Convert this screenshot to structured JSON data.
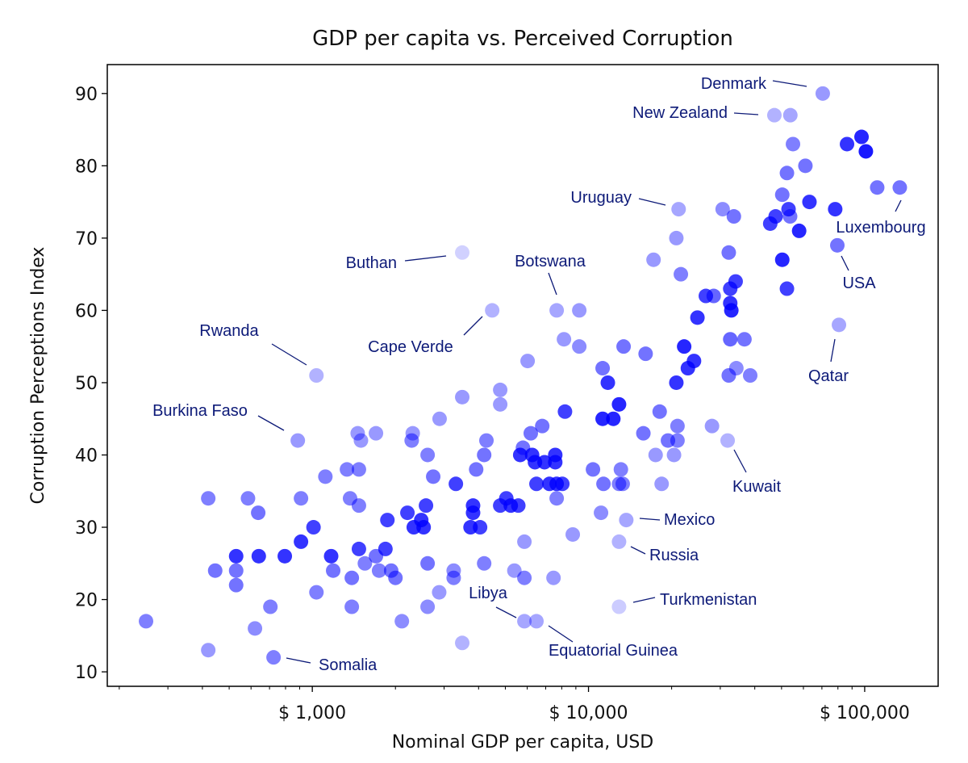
{
  "chart_data": {
    "type": "scatter",
    "title": "GDP per capita vs. Perceived Corruption",
    "xlabel": "Nominal GDP per capita, USD",
    "ylabel": "Corruption Perceptions Index",
    "xscale": "log",
    "xlim": [
      181,
      184500
    ],
    "ylim": [
      8,
      94
    ],
    "x_ticks": [
      1000,
      10000,
      100000
    ],
    "x_tick_labels": [
      "$ 1,000",
      "$ 10,000",
      "$ 100,000"
    ],
    "y_ticks": [
      10,
      20,
      30,
      40,
      50,
      60,
      70,
      80,
      90
    ],
    "y_tick_labels": [
      "10",
      "20",
      "30",
      "40",
      "50",
      "60",
      "70",
      "80",
      "90"
    ],
    "grid": false,
    "marker_color": "#0000ff",
    "annotation_color": "#0d1a78",
    "points": [
      [
        250,
        17,
        0.5
      ],
      [
        420,
        34,
        0.5
      ],
      [
        420,
        13,
        0.4
      ],
      [
        445,
        24,
        0.55
      ],
      [
        530,
        26,
        0.8
      ],
      [
        530,
        24,
        0.55
      ],
      [
        530,
        22,
        0.55
      ],
      [
        585,
        34,
        0.5
      ],
      [
        637,
        32,
        0.55
      ],
      [
        620,
        16,
        0.45
      ],
      [
        640,
        26,
        0.8
      ],
      [
        705,
        19,
        0.5
      ],
      [
        724,
        12,
        0.5
      ],
      [
        795,
        26,
        0.8
      ],
      [
        910,
        34,
        0.5
      ],
      [
        910,
        28,
        0.8
      ],
      [
        1010,
        30,
        0.75
      ],
      [
        1035,
        21,
        0.5
      ],
      [
        1115,
        37,
        0.5
      ],
      [
        1170,
        26,
        0.8
      ],
      [
        1190,
        24,
        0.55
      ],
      [
        1335,
        38,
        0.5
      ],
      [
        1370,
        34,
        0.5
      ],
      [
        1390,
        23,
        0.55
      ],
      [
        1390,
        19,
        0.5
      ],
      [
        1460,
        43,
        0.4
      ],
      [
        1475,
        38,
        0.5
      ],
      [
        1475,
        33,
        0.5
      ],
      [
        1475,
        27,
        0.75
      ],
      [
        1500,
        42,
        0.4
      ],
      [
        1550,
        25,
        0.5
      ],
      [
        1700,
        43,
        0.4
      ],
      [
        1700,
        26,
        0.55
      ],
      [
        1745,
        24,
        0.5
      ],
      [
        1840,
        27,
        0.75
      ],
      [
        1870,
        31,
        0.75
      ],
      [
        1930,
        24,
        0.55
      ],
      [
        2000,
        23,
        0.55
      ],
      [
        2110,
        17,
        0.45
      ],
      [
        2210,
        32,
        0.75
      ],
      [
        2310,
        43,
        0.4
      ],
      [
        2290,
        42,
        0.5
      ],
      [
        2330,
        30,
        0.8
      ],
      [
        2480,
        31,
        0.8
      ],
      [
        2530,
        30,
        0.8
      ],
      [
        2580,
        33,
        0.75
      ],
      [
        2615,
        40,
        0.5
      ],
      [
        2615,
        25,
        0.55
      ],
      [
        2615,
        19,
        0.45
      ],
      [
        2740,
        37,
        0.55
      ],
      [
        2880,
        21,
        0.4
      ],
      [
        2890,
        45,
        0.4
      ],
      [
        3250,
        23,
        0.5
      ],
      [
        3310,
        36,
        0.75
      ],
      [
        3250,
        24,
        0.45
      ],
      [
        3490,
        48,
        0.4
      ],
      [
        3490,
        14,
        0.3
      ],
      [
        3740,
        30,
        0.8
      ],
      [
        3820,
        32,
        0.8
      ],
      [
        3820,
        33,
        0.8
      ],
      [
        3920,
        38,
        0.55
      ],
      [
        4050,
        30,
        0.75
      ],
      [
        4190,
        40,
        0.55
      ],
      [
        4270,
        42,
        0.5
      ],
      [
        4190,
        25,
        0.5
      ],
      [
        4790,
        33,
        0.75
      ],
      [
        4790,
        49,
        0.4
      ],
      [
        4790,
        47,
        0.4
      ],
      [
        5040,
        34,
        0.75
      ],
      [
        5230,
        33,
        0.8
      ],
      [
        5570,
        33,
        0.75
      ],
      [
        5390,
        24,
        0.4
      ],
      [
        5660,
        40,
        0.8
      ],
      [
        5790,
        41,
        0.55
      ],
      [
        5860,
        28,
        0.4
      ],
      [
        5860,
        23,
        0.5
      ],
      [
        6020,
        53,
        0.4
      ],
      [
        6180,
        43,
        0.55
      ],
      [
        6250,
        40,
        0.8
      ],
      [
        6400,
        39,
        0.8
      ],
      [
        6480,
        36,
        0.75
      ],
      [
        6800,
        44,
        0.55
      ],
      [
        6930,
        39,
        0.8
      ],
      [
        7220,
        36,
        0.8
      ],
      [
        7580,
        39,
        0.8
      ],
      [
        7580,
        40,
        0.8
      ],
      [
        7670,
        36,
        0.8
      ],
      [
        7670,
        34,
        0.5
      ],
      [
        8040,
        36,
        0.75
      ],
      [
        7470,
        23,
        0.4
      ],
      [
        8150,
        56,
        0.4
      ],
      [
        8220,
        46,
        0.75
      ],
      [
        8770,
        29,
        0.4
      ],
      [
        9260,
        60,
        0.4
      ],
      [
        9260,
        55,
        0.45
      ],
      [
        10380,
        38,
        0.55
      ],
      [
        11250,
        52,
        0.55
      ],
      [
        11100,
        32,
        0.45
      ],
      [
        11250,
        45,
        0.85
      ],
      [
        11330,
        36,
        0.55
      ],
      [
        11750,
        50,
        0.8
      ],
      [
        12300,
        45,
        0.85
      ],
      [
        12900,
        47,
        0.85
      ],
      [
        12900,
        36,
        0.5
      ],
      [
        13100,
        38,
        0.5
      ],
      [
        13300,
        36,
        0.5
      ],
      [
        13400,
        55,
        0.55
      ],
      [
        15800,
        43,
        0.55
      ],
      [
        16100,
        54,
        0.55
      ],
      [
        17200,
        67,
        0.4
      ],
      [
        17500,
        40,
        0.4
      ],
      [
        18100,
        46,
        0.55
      ],
      [
        18400,
        36,
        0.4
      ],
      [
        19400,
        42,
        0.55
      ],
      [
        20400,
        40,
        0.4
      ],
      [
        20800,
        50,
        0.8
      ],
      [
        20800,
        70,
        0.4
      ],
      [
        21000,
        42,
        0.5
      ],
      [
        21000,
        44,
        0.5
      ],
      [
        21600,
        65,
        0.5
      ],
      [
        22200,
        55,
        0.85
      ],
      [
        22900,
        52,
        0.8
      ],
      [
        24100,
        53,
        0.8
      ],
      [
        24800,
        59,
        0.8
      ],
      [
        28000,
        44,
        0.4
      ],
      [
        26600,
        62,
        0.75
      ],
      [
        28400,
        62,
        0.6
      ],
      [
        30600,
        74,
        0.45
      ],
      [
        32200,
        68,
        0.55
      ],
      [
        32600,
        61,
        0.8
      ],
      [
        32600,
        63,
        0.75
      ],
      [
        32900,
        60,
        0.85
      ],
      [
        32600,
        56,
        0.6
      ],
      [
        32200,
        51,
        0.55
      ],
      [
        33600,
        73,
        0.55
      ],
      [
        34100,
        64,
        0.75
      ],
      [
        34300,
        52,
        0.45
      ],
      [
        36700,
        56,
        0.55
      ],
      [
        38500,
        51,
        0.5
      ],
      [
        45500,
        72,
        0.75
      ],
      [
        47600,
        73,
        0.75
      ],
      [
        50300,
        76,
        0.55
      ],
      [
        50300,
        67,
        0.85
      ],
      [
        52300,
        79,
        0.55
      ],
      [
        52300,
        63,
        0.75
      ],
      [
        53000,
        74,
        0.75
      ],
      [
        53700,
        73,
        0.55
      ],
      [
        55000,
        83,
        0.5
      ],
      [
        57900,
        71,
        0.85
      ],
      [
        61000,
        80,
        0.55
      ],
      [
        63100,
        75,
        0.8
      ],
      [
        78200,
        74,
        0.8
      ],
      [
        86300,
        83,
        0.8
      ],
      [
        97400,
        84,
        0.85
      ],
      [
        101000,
        82,
        0.9
      ],
      [
        70500,
        90,
        0.4
      ],
      [
        47100,
        87,
        0.3
      ],
      [
        53800,
        87,
        0.35
      ],
      [
        21200,
        74,
        0.35
      ],
      [
        3490,
        68,
        0.18
      ],
      [
        7670,
        60,
        0.35
      ],
      [
        4480,
        60,
        0.3
      ],
      [
        1035,
        51,
        0.3
      ],
      [
        886,
        42,
        0.4
      ],
      [
        31900,
        42,
        0.3
      ],
      [
        13700,
        31,
        0.35
      ],
      [
        12900,
        28,
        0.3
      ],
      [
        12900,
        19,
        0.2
      ],
      [
        5860,
        17,
        0.35
      ],
      [
        6480,
        17,
        0.35
      ],
      [
        80700,
        58,
        0.35
      ],
      [
        79600,
        69,
        0.55
      ],
      [
        134000,
        77,
        0.55
      ],
      [
        111000,
        77,
        0.55
      ]
    ],
    "annotations": [
      {
        "label": "Denmark",
        "gdp": 70500,
        "cpi": 90
      },
      {
        "label": "New Zealand",
        "gdp": 47100,
        "cpi": 87
      },
      {
        "label": "Uruguay",
        "gdp": 21200,
        "cpi": 74
      },
      {
        "label": "Buthan",
        "gdp": 3490,
        "cpi": 68
      },
      {
        "label": "Botswana",
        "gdp": 7670,
        "cpi": 60
      },
      {
        "label": "Cape Verde",
        "gdp": 4480,
        "cpi": 60
      },
      {
        "label": "Rwanda",
        "gdp": 1035,
        "cpi": 51
      },
      {
        "label": "Burkina Faso",
        "gdp": 886,
        "cpi": 42
      },
      {
        "label": "Kuwait",
        "gdp": 31900,
        "cpi": 42
      },
      {
        "label": "Mexico",
        "gdp": 13700,
        "cpi": 31
      },
      {
        "label": "Russia",
        "gdp": 12900,
        "cpi": 28
      },
      {
        "label": "Turkmenistan",
        "gdp": 12900,
        "cpi": 19
      },
      {
        "label": "Libya",
        "gdp": 5860,
        "cpi": 17
      },
      {
        "label": "Equatorial Guinea",
        "gdp": 6480,
        "cpi": 17
      },
      {
        "label": "Somalia",
        "gdp": 724,
        "cpi": 12
      },
      {
        "label": "Luxembourg",
        "gdp": 134000,
        "cpi": 77
      },
      {
        "label": "USA",
        "gdp": 79600,
        "cpi": 69
      },
      {
        "label": "Qatar",
        "gdp": 80700,
        "cpi": 58
      }
    ]
  }
}
